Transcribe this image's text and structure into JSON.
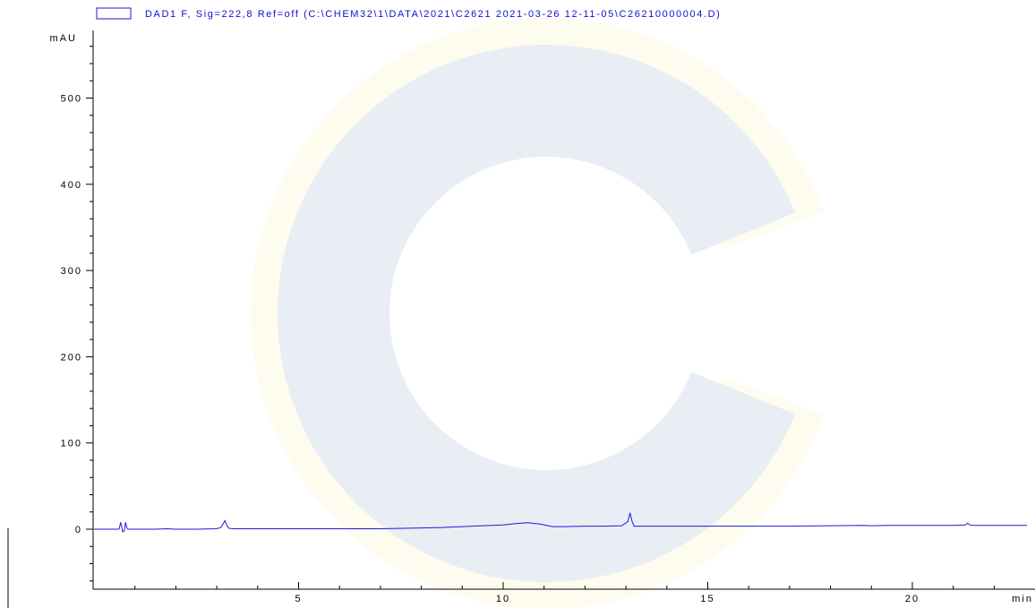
{
  "chart_data": {
    "type": "line",
    "legend_text": "DAD1 F, Sig=222,8 Ref=off (C:\\CHEM32\\1\\DATA\\2021\\C2621 2021-03-26 12-11-05\\C26210000004.D)",
    "ylabel": "mAU",
    "xunit": "min",
    "xlim": [
      0,
      22.8
    ],
    "ylim": [
      -70,
      570
    ],
    "xticks": [
      5,
      10,
      15,
      20
    ],
    "yticks": [
      0,
      100,
      200,
      300,
      400,
      500
    ],
    "grid": false,
    "legend_position": "top-left",
    "series_color": "#1a1ad6",
    "series": [
      {
        "x": [
          0.0,
          0.6,
          0.62,
          0.65,
          0.68,
          0.7,
          0.74,
          0.77,
          0.8,
          0.83,
          0.86,
          1.0,
          1.5,
          1.8,
          2.0,
          2.5,
          3.0,
          3.1,
          3.15,
          3.2,
          3.25,
          3.3,
          3.4,
          4.0,
          5.0,
          6.0,
          7.0,
          8.0,
          8.5,
          9.0,
          9.5,
          10.0,
          10.3,
          10.6,
          10.9,
          11.2,
          11.5,
          12.0,
          12.5,
          12.9,
          13.05,
          13.1,
          13.15,
          13.2,
          13.3,
          13.5,
          14.0,
          15.0,
          16.0,
          17.0,
          18.0,
          18.8,
          19.0,
          19.4,
          20.0,
          21.0,
          21.3,
          21.35,
          21.4,
          21.5,
          22.0,
          22.8
        ],
        "y": [
          0,
          0,
          1,
          8,
          2,
          -3,
          -2,
          8,
          2,
          0,
          0,
          0,
          0,
          0.5,
          0,
          0,
          0.5,
          2,
          6,
          10,
          4,
          1,
          0.5,
          0.5,
          0.5,
          0.5,
          0.5,
          1.5,
          2,
          3,
          4,
          5,
          6.5,
          7.5,
          6,
          3,
          3,
          3.5,
          3.5,
          4,
          9,
          19,
          9,
          3.5,
          3.5,
          3.5,
          3.5,
          3.5,
          3.5,
          3.5,
          4,
          4.5,
          4,
          4.5,
          4.5,
          4.5,
          5,
          7,
          5,
          4.5,
          4.5,
          4.5
        ]
      }
    ]
  },
  "watermark": {
    "shape": "c-logo",
    "colors": [
      "#e8eef4",
      "#fdfcee"
    ]
  }
}
